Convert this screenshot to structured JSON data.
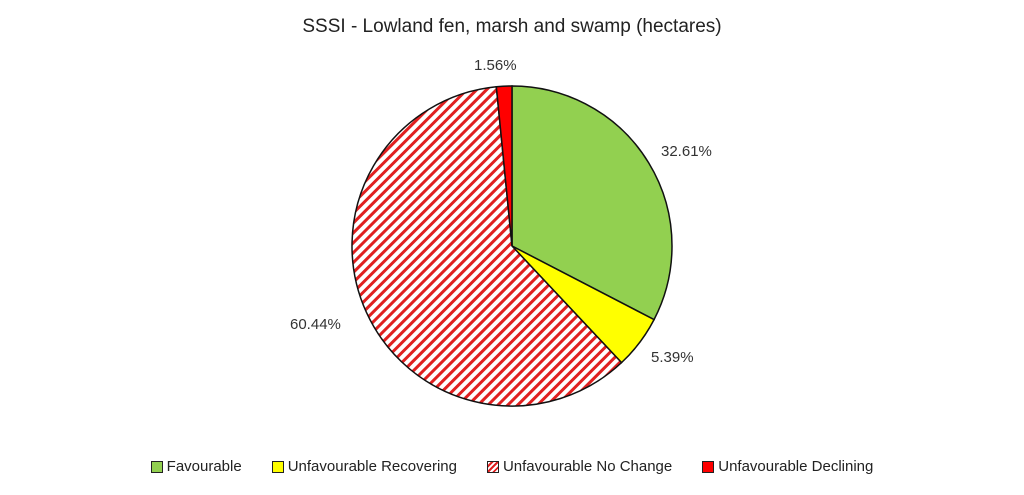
{
  "chart_data": {
    "type": "pie",
    "title": "SSSI - Lowland fen, marsh and swamp (hectares)",
    "categories": [
      "Favourable",
      "Unfavourable Recovering",
      "Unfavourable No Change",
      "Unfavourable Declining"
    ],
    "values": [
      32.61,
      5.39,
      60.44,
      1.56
    ],
    "labels": [
      "32.61%",
      "5.39%",
      "60.44%",
      "1.56%"
    ],
    "colors": [
      "#92d050",
      "#ffff00",
      "#ff0000",
      "#ff0000"
    ],
    "patterns": [
      "solid",
      "solid",
      "diagonal-stripes",
      "solid"
    ],
    "legend_position": "bottom",
    "start_angle_deg": 0,
    "direction": "clockwise"
  },
  "legend": {
    "items": [
      {
        "label": "Favourable"
      },
      {
        "label": "Unfavourable Recovering"
      },
      {
        "label": "Unfavourable No Change"
      },
      {
        "label": "Unfavourable Declining"
      }
    ]
  }
}
